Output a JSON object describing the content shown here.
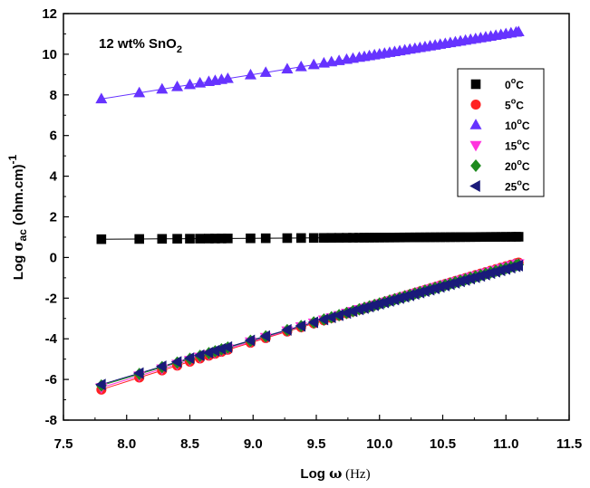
{
  "chart_data": {
    "type": "scatter",
    "annotation": {
      "prefix": "12 wt% SnO",
      "subscript": "2"
    },
    "xlabel": {
      "prefix": "Log ",
      "symbol": "ω",
      "unit": " (Hz)"
    },
    "ylabel": {
      "prefix": "Log ",
      "symbol": "σ",
      "subscript": "ac",
      "unit": " (ohm.cm)",
      "superscript": "-1"
    },
    "xlim": [
      7.5,
      11.5
    ],
    "ylim": [
      -8,
      12
    ],
    "xticks": [
      "7.5",
      "8.0",
      "8.5",
      "9.0",
      "9.5",
      "10.0",
      "10.5",
      "11.0",
      "11.5"
    ],
    "yticks": [
      "-8",
      "-6",
      "-4",
      "-2",
      "0",
      "2",
      "4",
      "6",
      "8",
      "10",
      "12"
    ],
    "legend_position": "upper-right",
    "series": [
      {
        "name": "0°C",
        "label_num": "0",
        "marker": "square",
        "color": "#000000",
        "y_start": 0.9,
        "y_end": 1.02,
        "slope_curvature": 0.0
      },
      {
        "name": "5°C",
        "label_num": "5",
        "marker": "circle",
        "color": "#ff2222",
        "y_start": -6.5,
        "y_end": -0.25,
        "slope_curvature": 0.55
      },
      {
        "name": "10°C",
        "label_num": "10",
        "marker": "triangle-up",
        "color": "#6633ff",
        "y_start": 7.8,
        "y_end": 11.1,
        "slope_curvature": 0.0
      },
      {
        "name": "15°C",
        "label_num": "15",
        "marker": "triangle-down",
        "color": "#ff33dd",
        "y_start": -6.4,
        "y_end": -0.3,
        "slope_curvature": 0.55
      },
      {
        "name": "20°C",
        "label_num": "20",
        "marker": "diamond",
        "color": "#1e8a1e",
        "y_start": -6.3,
        "y_end": -0.35,
        "slope_curvature": 0.55
      },
      {
        "name": "25°C",
        "label_num": "25",
        "marker": "triangle-left",
        "color": "#1a1a7a",
        "y_start": -6.25,
        "y_end": -0.4,
        "slope_curvature": 0.6
      }
    ],
    "x_values": [
      7.8,
      8.1,
      8.28,
      8.4,
      8.5,
      8.58,
      8.65,
      8.7,
      8.75,
      8.8,
      8.98,
      9.1,
      9.27,
      9.38,
      9.48,
      9.56,
      9.62,
      9.68,
      9.74,
      9.79,
      9.84,
      9.88,
      9.92,
      9.96,
      10.0,
      10.04,
      10.08,
      10.12,
      10.16,
      10.2,
      10.24,
      10.28,
      10.32,
      10.36,
      10.4,
      10.44,
      10.48,
      10.52,
      10.56,
      10.6,
      10.64,
      10.68,
      10.72,
      10.76,
      10.8,
      10.84,
      10.88,
      10.92,
      10.96,
      11.0,
      11.04,
      11.08,
      11.1
    ]
  }
}
